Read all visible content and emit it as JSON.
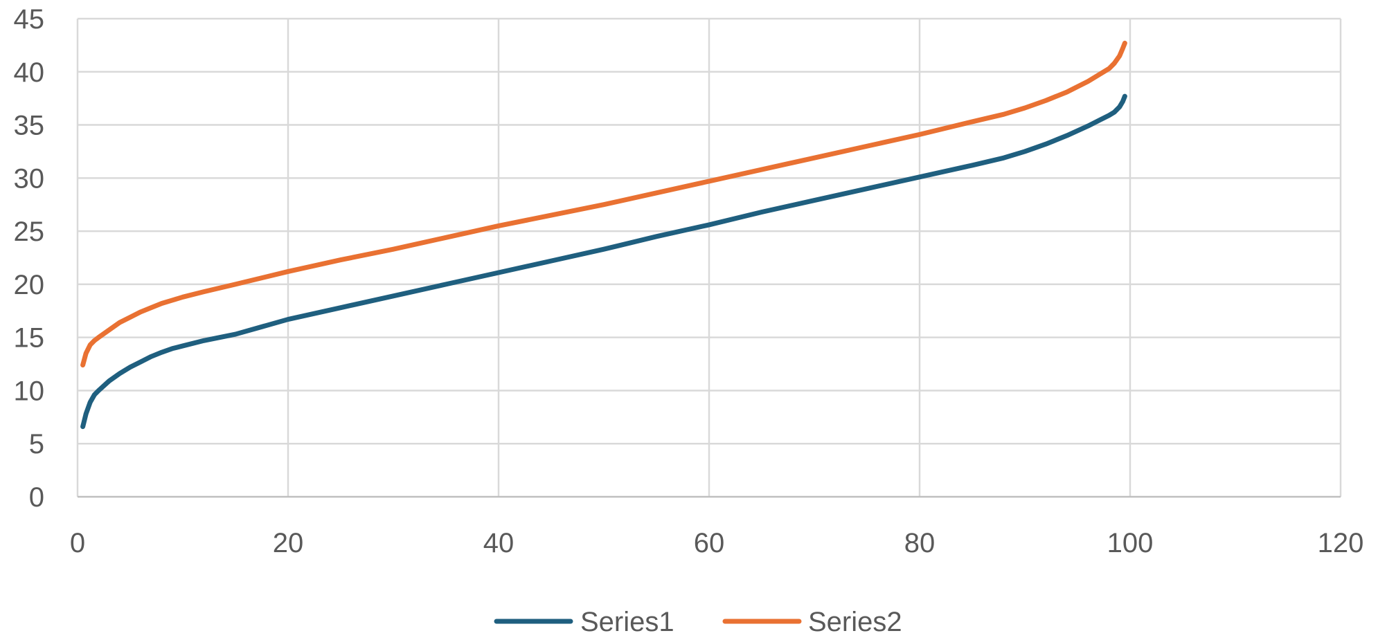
{
  "chart_data": {
    "type": "line",
    "title": "",
    "xlabel": "",
    "ylabel": "",
    "xlim": [
      0,
      120
    ],
    "ylim": [
      0,
      45
    ],
    "x_ticks": [
      0,
      20,
      40,
      60,
      80,
      100,
      120
    ],
    "y_ticks": [
      0,
      5,
      10,
      15,
      20,
      25,
      30,
      35,
      40,
      45
    ],
    "grid": true,
    "legend_position": "bottom",
    "series": [
      {
        "name": "Series1",
        "color": "#1f5f7f",
        "x": [
          0.5,
          0.8,
          1.2,
          1.6,
          2,
          3,
          4,
          5,
          6,
          7,
          8,
          9,
          10,
          12,
          15,
          20,
          25,
          30,
          35,
          40,
          45,
          50,
          55,
          60,
          65,
          70,
          75,
          80,
          85,
          88,
          90,
          92,
          94,
          96,
          97,
          98,
          98.5,
          99,
          99.3,
          99.5
        ],
        "y": [
          6.6,
          7.8,
          8.9,
          9.6,
          10.0,
          10.9,
          11.6,
          12.2,
          12.7,
          13.2,
          13.6,
          13.95,
          14.2,
          14.7,
          15.3,
          16.7,
          17.8,
          18.9,
          20.0,
          21.1,
          22.2,
          23.3,
          24.5,
          25.6,
          26.8,
          27.9,
          29.0,
          30.1,
          31.2,
          31.9,
          32.5,
          33.2,
          34.0,
          34.9,
          35.4,
          35.9,
          36.2,
          36.7,
          37.2,
          37.7
        ]
      },
      {
        "name": "Series2",
        "color": "#e97132",
        "x": [
          0.5,
          0.8,
          1.2,
          1.6,
          2,
          3,
          4,
          5,
          6,
          7,
          8,
          9,
          10,
          12,
          15,
          20,
          25,
          30,
          35,
          40,
          45,
          50,
          55,
          60,
          65,
          70,
          75,
          80,
          85,
          88,
          90,
          92,
          94,
          96,
          97,
          98,
          98.5,
          99,
          99.3,
          99.5
        ],
        "y": [
          12.4,
          13.5,
          14.3,
          14.7,
          15.0,
          15.7,
          16.4,
          16.9,
          17.4,
          17.8,
          18.2,
          18.5,
          18.8,
          19.3,
          20.0,
          21.2,
          22.3,
          23.3,
          24.4,
          25.5,
          26.5,
          27.5,
          28.6,
          29.7,
          30.8,
          31.9,
          33.0,
          34.1,
          35.3,
          36.0,
          36.6,
          37.3,
          38.1,
          39.1,
          39.7,
          40.3,
          40.8,
          41.5,
          42.2,
          42.7
        ]
      }
    ]
  }
}
